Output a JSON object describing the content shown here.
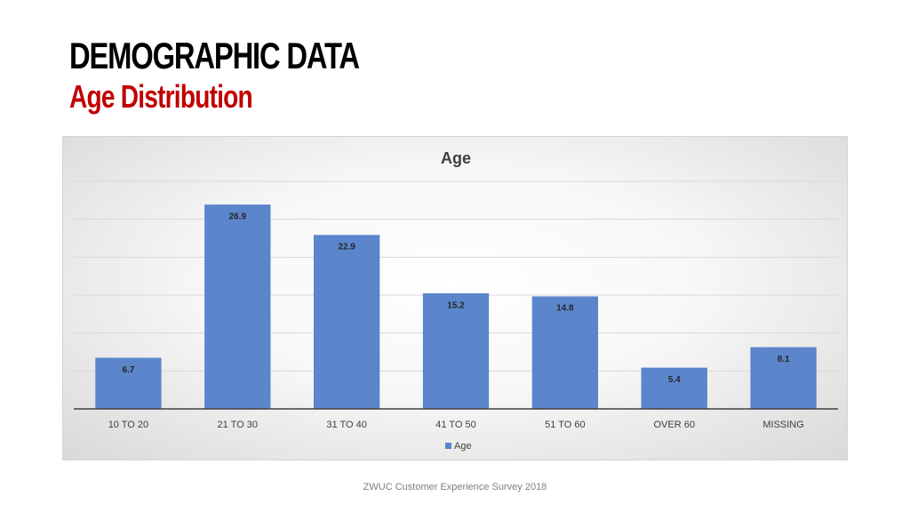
{
  "slide": {
    "title": "DEMOGRAPHIC DATA",
    "subtitle": "Age Distribution",
    "footer": "ZWUC Customer Experience Survey 2018"
  },
  "colors": {
    "title": "#000000",
    "subtitle": "#c00000",
    "bar": "#5b86cc",
    "bar_border": "#4f7ac0",
    "gridline": "#d9d9d9",
    "axis": "#404040"
  },
  "chart_data": {
    "type": "bar",
    "title": "Age",
    "xlabel": "",
    "ylabel": "",
    "categories": [
      "10 TO 20",
      "21 TO 30",
      "31 TO 40",
      "41 TO 50",
      "51 TO 60",
      "OVER 60",
      "MISSING"
    ],
    "series": [
      {
        "name": "Age",
        "values": [
          6.7,
          26.9,
          22.9,
          15.2,
          14.8,
          5.4,
          8.1
        ]
      }
    ],
    "ylim": [
      0,
      30
    ],
    "grid": true,
    "legend": "bottom",
    "data_labels": true
  }
}
